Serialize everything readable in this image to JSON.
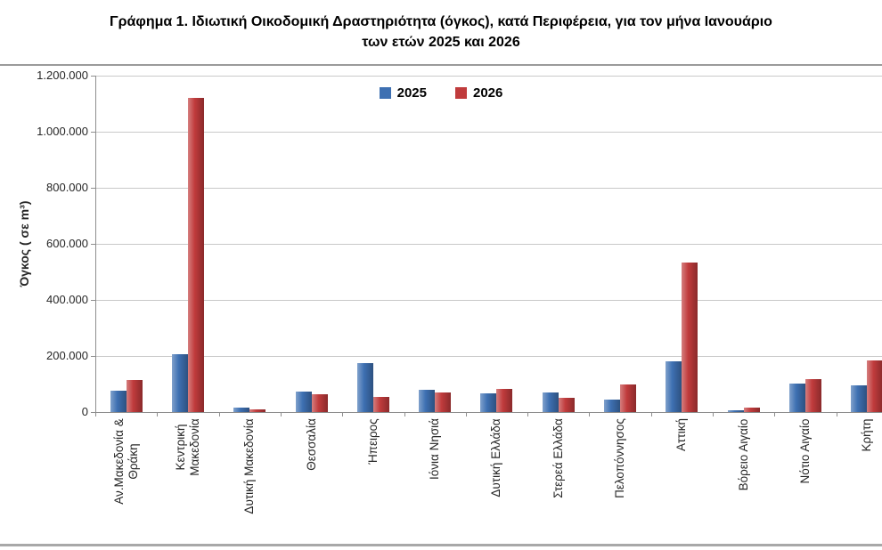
{
  "title": {
    "line1": "Γράφημα 1.  Ιδιωτική Οικοδομική Δραστηριότητα (όγκος), κατά Περιφέρεια, για τον μήνα Ιανουάριο",
    "line2": "των ετών 2025 και 2026"
  },
  "chart_data": {
    "type": "bar",
    "title": "Γράφημα 1. Ιδιωτική Οικοδομική Δραστηριότητα (όγκος), κατά Περιφέρεια, για τον μήνα Ιανουάριο των ετών 2025 και 2026",
    "ylabel": "Όγκος ( σε  m³)",
    "xlabel": "",
    "ylim": [
      0,
      1200000
    ],
    "ytick_step": 200000,
    "ytick_labels": [
      "0",
      "200.000",
      "400.000",
      "600.000",
      "800.000",
      "1.000.000",
      "1.200.000"
    ],
    "grid": true,
    "legend_position": "top-center",
    "categories": [
      "Αν.Μακεδονία &\nΘράκη",
      "Κεντρική\nΜακεδονία",
      "Δυτική Μακεδονία",
      "Θεσσαλία",
      "Ήπειρος",
      "Ιόνια Νησιά",
      "Δυτική Ελλάδα",
      "Στερεά Ελλάδα",
      "Πελοπόννησος",
      "Αττική",
      "Βόρειο Αιγαίο",
      "Νότιο Αιγαίο",
      "Κρήτη"
    ],
    "series": [
      {
        "name": "2025",
        "color": "#3E70B2",
        "values": [
          75000,
          205000,
          17000,
          73000,
          174000,
          80000,
          67000,
          69000,
          46000,
          182000,
          7000,
          102000,
          95000
        ]
      },
      {
        "name": "2026",
        "color": "#C03B3C",
        "values": [
          115000,
          1120000,
          11000,
          65000,
          54000,
          70000,
          81000,
          51000,
          99000,
          533000,
          17000,
          117000,
          184000
        ]
      }
    ]
  }
}
